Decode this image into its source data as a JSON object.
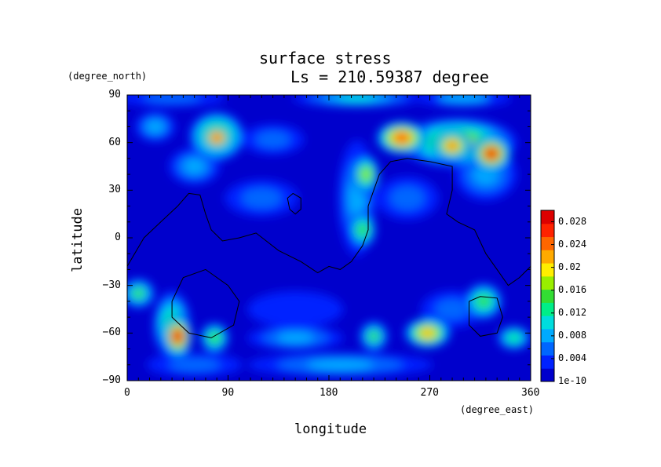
{
  "chart_data": {
    "type": "heatmap",
    "title": "surface stress",
    "subtitle": "Ls = 210.59387 degree",
    "xlabel": "longitude",
    "ylabel": "latitude",
    "x_unit": "(degree_east)",
    "y_unit": "(degree_north)",
    "xlim": [
      0,
      360
    ],
    "ylim": [
      -90,
      90
    ],
    "x_ticks": [
      "0",
      "90",
      "180",
      "270",
      "360"
    ],
    "y_ticks": [
      "90",
      "60",
      "30",
      "0",
      "−30",
      "−60",
      "−90"
    ],
    "colorbar": {
      "range": [
        0,
        0.03
      ],
      "tick_labels": [
        "1e-10",
        "0.004",
        "0.008",
        "0.012",
        "0.016",
        "0.02",
        "0.024",
        "0.028"
      ],
      "colors": [
        "#0000cc",
        "#0022ff",
        "#0066ff",
        "#00aaff",
        "#00dddd",
        "#00ee88",
        "#33dd33",
        "#99ee00",
        "#ffee00",
        "#ffaa00",
        "#ff6600",
        "#ff2200",
        "#dd0000"
      ]
    },
    "background_value": 0.0015,
    "features": [
      {
        "lon": 40,
        "lat": 88,
        "rx": 45,
        "ry": 4,
        "value": 0.006
      },
      {
        "lon": 205,
        "lat": 88,
        "rx": 55,
        "ry": 4,
        "value": 0.01
      },
      {
        "lon": 300,
        "lat": 88,
        "rx": 40,
        "ry": 4,
        "value": 0.007
      },
      {
        "lon": 80,
        "lat": 64,
        "rx": 22,
        "ry": 14,
        "value": 0.02
      },
      {
        "lon": 80,
        "lat": 63,
        "rx": 10,
        "ry": 6,
        "value": 0.027
      },
      {
        "lon": 25,
        "lat": 70,
        "rx": 15,
        "ry": 8,
        "value": 0.008
      },
      {
        "lon": 130,
        "lat": 62,
        "rx": 25,
        "ry": 8,
        "value": 0.006
      },
      {
        "lon": 60,
        "lat": 45,
        "rx": 20,
        "ry": 10,
        "value": 0.008
      },
      {
        "lon": 295,
        "lat": 60,
        "rx": 50,
        "ry": 14,
        "value": 0.02
      },
      {
        "lon": 245,
        "lat": 63,
        "rx": 20,
        "ry": 9,
        "value": 0.027
      },
      {
        "lon": 290,
        "lat": 58,
        "rx": 14,
        "ry": 8,
        "value": 0.024
      },
      {
        "lon": 325,
        "lat": 53,
        "rx": 15,
        "ry": 10,
        "value": 0.028
      },
      {
        "lon": 213,
        "lat": 40,
        "rx": 9,
        "ry": 11,
        "value": 0.018
      },
      {
        "lon": 210,
        "lat": 5,
        "rx": 9,
        "ry": 10,
        "value": 0.016
      },
      {
        "lon": 205,
        "lat": 25,
        "rx": 14,
        "ry": 35,
        "value": 0.008
      },
      {
        "lon": 320,
        "lat": 40,
        "rx": 25,
        "ry": 15,
        "value": 0.008
      },
      {
        "lon": 250,
        "lat": 25,
        "rx": 25,
        "ry": 12,
        "value": 0.005
      },
      {
        "lon": 120,
        "lat": 25,
        "rx": 30,
        "ry": 10,
        "value": 0.005
      },
      {
        "lon": 10,
        "lat": -35,
        "rx": 12,
        "ry": 8,
        "value": 0.014
      },
      {
        "lon": 45,
        "lat": -62,
        "rx": 10,
        "ry": 12,
        "value": 0.028
      },
      {
        "lon": 40,
        "lat": -55,
        "rx": 14,
        "ry": 20,
        "value": 0.016
      },
      {
        "lon": 78,
        "lat": -63,
        "rx": 10,
        "ry": 8,
        "value": 0.016
      },
      {
        "lon": 150,
        "lat": -63,
        "rx": 40,
        "ry": 6,
        "value": 0.008
      },
      {
        "lon": 220,
        "lat": -62,
        "rx": 10,
        "ry": 8,
        "value": 0.014
      },
      {
        "lon": 268,
        "lat": -60,
        "rx": 18,
        "ry": 8,
        "value": 0.022
      },
      {
        "lon": 318,
        "lat": -40,
        "rx": 14,
        "ry": 10,
        "value": 0.016
      },
      {
        "lon": 345,
        "lat": -63,
        "rx": 12,
        "ry": 6,
        "value": 0.012
      },
      {
        "lon": 190,
        "lat": -80,
        "rx": 80,
        "ry": 6,
        "value": 0.008
      },
      {
        "lon": 60,
        "lat": -80,
        "rx": 40,
        "ry": 6,
        "value": 0.006
      },
      {
        "lon": 150,
        "lat": -45,
        "rx": 40,
        "ry": 10,
        "value": 0.004
      },
      {
        "lon": 290,
        "lat": -45,
        "rx": 25,
        "ry": 10,
        "value": 0.006
      }
    ],
    "contours": [
      [
        [
          0,
          -18
        ],
        [
          15,
          0
        ],
        [
          30,
          10
        ],
        [
          45,
          20
        ],
        [
          55,
          28
        ],
        [
          65,
          27
        ],
        [
          70,
          15
        ],
        [
          75,
          5
        ],
        [
          85,
          -2
        ],
        [
          100,
          0
        ],
        [
          115,
          3
        ],
        [
          135,
          -8
        ],
        [
          155,
          -15
        ],
        [
          170,
          -22
        ],
        [
          180,
          -18
        ],
        [
          190,
          -20
        ],
        [
          200,
          -15
        ],
        [
          210,
          -5
        ],
        [
          215,
          5
        ],
        [
          215,
          20
        ],
        [
          220,
          30
        ],
        [
          225,
          40
        ],
        [
          235,
          48
        ],
        [
          250,
          50
        ],
        [
          270,
          48
        ],
        [
          290,
          45
        ],
        [
          290,
          30
        ],
        [
          285,
          15
        ],
        [
          295,
          10
        ],
        [
          310,
          5
        ],
        [
          320,
          -10
        ],
        [
          330,
          -20
        ],
        [
          340,
          -30
        ],
        [
          350,
          -25
        ],
        [
          360,
          -18
        ]
      ],
      [
        [
          148,
          28
        ],
        [
          155,
          25
        ],
        [
          155,
          18
        ],
        [
          150,
          15
        ],
        [
          145,
          18
        ],
        [
          143,
          25
        ],
        [
          148,
          28
        ]
      ],
      [
        [
          40,
          -40
        ],
        [
          50,
          -25
        ],
        [
          70,
          -20
        ],
        [
          90,
          -30
        ],
        [
          100,
          -40
        ],
        [
          95,
          -55
        ],
        [
          75,
          -63
        ],
        [
          55,
          -60
        ],
        [
          40,
          -50
        ],
        [
          40,
          -40
        ]
      ],
      [
        [
          305,
          -40
        ],
        [
          315,
          -37
        ],
        [
          330,
          -38
        ],
        [
          335,
          -50
        ],
        [
          330,
          -60
        ],
        [
          315,
          -62
        ],
        [
          305,
          -55
        ],
        [
          305,
          -40
        ]
      ]
    ]
  }
}
